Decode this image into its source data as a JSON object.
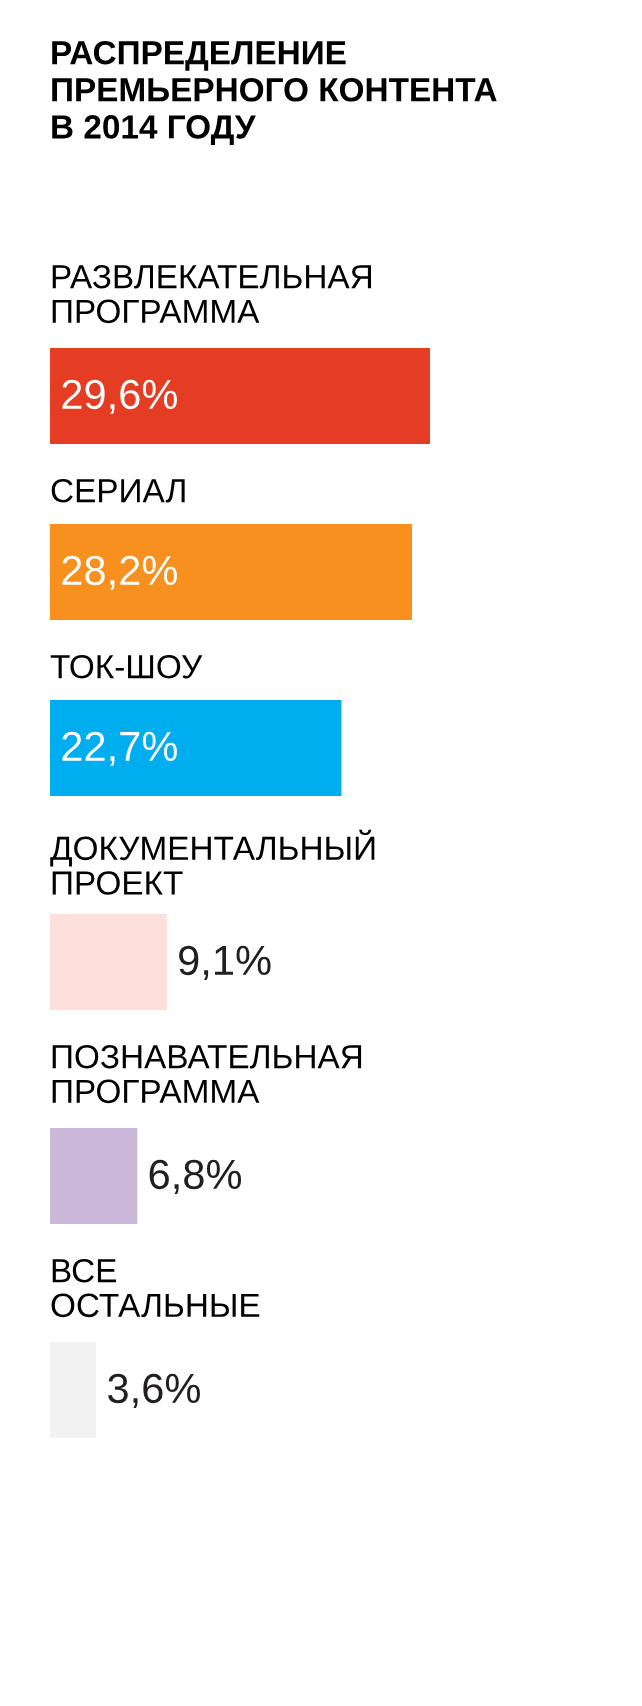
{
  "chart_data": {
    "type": "bar",
    "orientation": "horizontal",
    "title": "РАСПРЕДЕЛЕНИЕ\nПРЕМЬЕРНОГО КОНТЕНТА\nВ 2014 ГОДУ",
    "categories": [
      "РАЗВЛЕКАТЕЛЬНАЯ\nПРОГРАММА",
      "СЕРИАЛ",
      "ТОК-ШОУ",
      "ДОКУМЕНТАЛЬНЫЙ\nПРОЕКТ",
      "ПОЗНАВАТЕЛЬНАЯ\nПРОГРАММА",
      "ВСЕ\nОСТАЛЬНЫЕ"
    ],
    "values": [
      29.6,
      28.2,
      22.7,
      9.1,
      6.8,
      3.6
    ],
    "colors": [
      "#e53c24",
      "#f7901e",
      "#00aeef",
      "#fde0dc",
      "#cbb8d9",
      "#f2f2f2"
    ],
    "value_labels": [
      "29,6%",
      "28,2%",
      "22,7%",
      "9,1%",
      "6,8%",
      "3,6%"
    ]
  }
}
